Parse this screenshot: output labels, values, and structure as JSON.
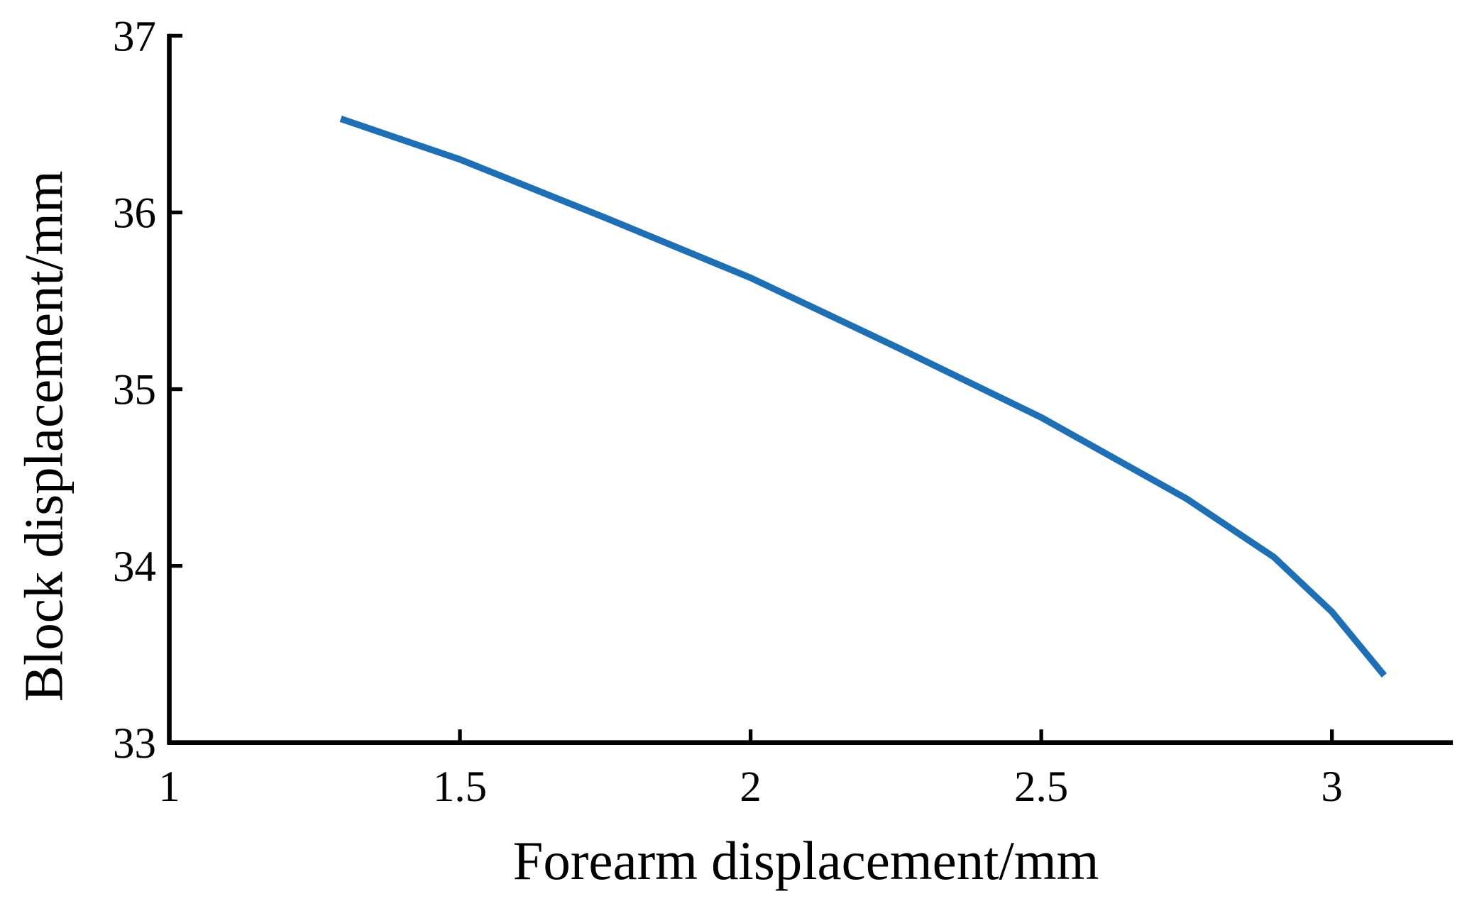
{
  "chart_data": {
    "type": "line",
    "x_label": "Forearm displacement/mm",
    "y_label": "Block displacement/mm",
    "x": [
      1.295,
      1.5,
      1.75,
      2,
      2.25,
      2.5,
      2.75,
      2.9,
      3,
      3.09
    ],
    "values": [
      36.53,
      36.3,
      35.97,
      35.63,
      35.24,
      34.84,
      34.38,
      34.05,
      33.74,
      33.38
    ],
    "color": "#1f6fb5",
    "xlim": [
      1,
      3.2
    ],
    "xticks": [
      1,
      1.5,
      2,
      2.5,
      3
    ],
    "ylim": [
      33,
      37
    ],
    "yticks": [
      33,
      34,
      35,
      36,
      37
    ],
    "grid": false
  }
}
